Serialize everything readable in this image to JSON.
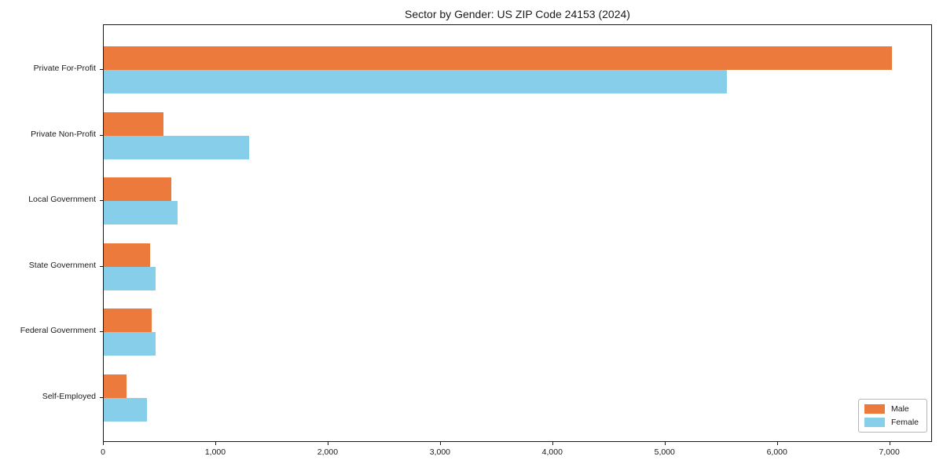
{
  "chart_data": {
    "type": "bar",
    "orientation": "horizontal",
    "title": "Sector by Gender: US ZIP Code 24153 (2024)",
    "categories": [
      "Private For-Profit",
      "Private Non-Profit",
      "Local Government",
      "State Government",
      "Federal Government",
      "Self-Employed"
    ],
    "series": [
      {
        "name": "Male",
        "color": "#EC7A3D",
        "values": [
          7030,
          535,
          605,
          415,
          430,
          205
        ]
      },
      {
        "name": "Female",
        "color": "#87CEEB",
        "values": [
          5560,
          1295,
          660,
          460,
          460,
          385
        ]
      }
    ],
    "xlabel": "",
    "ylabel": "",
    "xlim": [
      0,
      7380
    ],
    "x_tick_values": [
      0,
      1000,
      2000,
      3000,
      4000,
      5000,
      6000,
      7000
    ],
    "x_tick_labels": [
      "0",
      "1,000",
      "2,000",
      "3,000",
      "4,000",
      "5,000",
      "6,000",
      "7,000"
    ],
    "grid": false,
    "legend_position": "lower right"
  }
}
